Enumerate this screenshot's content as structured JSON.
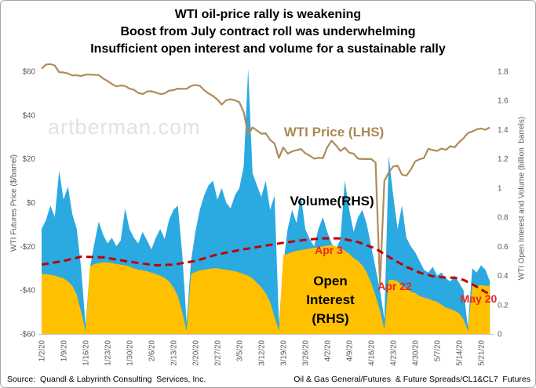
{
  "title": {
    "lines": [
      "WTI oil-price rally is weakening",
      "Boost from July contract roll was underwhelming",
      "Insufficient open interest and volume for a sustainable rally"
    ]
  },
  "watermark": "artberman.com",
  "annotations": {
    "price_label": "WTI Price (LHS)",
    "volume_label": "Volume(RHS)",
    "open_interest_lines": [
      "Open",
      "Interest",
      "(RHS)"
    ],
    "apr3": "Apr 3",
    "apr22": "Apr 22",
    "may20": "May 20"
  },
  "footer": {
    "source": "Source:  Quandl & Labyrinth Consulting  Services, Inc.",
    "dataset": "Oil & Gas General/Futures  & Future Spreads/CL1&CL7  Futures"
  },
  "colors": {
    "volume_area": "#2BA9E1",
    "open_interest_area": "#FFC000",
    "price_line": "#AE8C5A",
    "trend_dashed": "#C00000",
    "annotation_red": "#E8251C",
    "axis_text": "#595959",
    "watermark": "#E2E2E2"
  },
  "chart_data": {
    "type": "area",
    "subtype": "combo-chart: two overlapping area series (right axis) + price line (left axis) + dashed trend line (right axis)",
    "n_points": 103,
    "x_label_every_n_points": 5,
    "x_labels": [
      "1/2/20",
      "1/9/20",
      "1/16/20",
      "1/23/20",
      "1/30/20",
      "2/6/20",
      "2/13/20",
      "2/20/20",
      "2/27/20",
      "3/5/20",
      "3/12/20",
      "3/19/20",
      "3/26/20",
      "4/2/20",
      "4/9/20",
      "4/16/20",
      "4/23/20",
      "4/30/20",
      "5/7/20",
      "5/14/20",
      "5/21/20"
    ],
    "left_axis": {
      "title": "WTI Futures Price ($/barrel)",
      "min": -60,
      "max": 60,
      "ticks": [
        "$60",
        "$40",
        "$20",
        "$0",
        "-$20",
        "-$40",
        "-$60"
      ]
    },
    "right_axis": {
      "title": "WTI Open Interest and Volume (billion  barrels)",
      "min": 0,
      "max": 1.8,
      "ticks": [
        "1.8",
        "1.6",
        "1.4",
        "1.2",
        "1",
        "0.8",
        "0.6",
        "0.4",
        "0.2",
        "0"
      ]
    },
    "grid": false,
    "legend": "inline text labels on plot",
    "series": [
      {
        "name": "WTI Price (LHS)",
        "type": "line",
        "axis": "left",
        "color": "#AE8C5A",
        "values": [
          61.2,
          63.1,
          63.3,
          62.7,
          59.6,
          59.5,
          59.0,
          58.1,
          58.2,
          57.8,
          58.5,
          58.5,
          58.4,
          58.3,
          56.7,
          55.6,
          54.2,
          53.1,
          53.5,
          53.3,
          52.1,
          51.6,
          50.1,
          49.6,
          50.8,
          50.9,
          50.3,
          49.6,
          49.9,
          51.2,
          51.4,
          52.1,
          52.0,
          52.0,
          53.3,
          53.8,
          53.4,
          51.4,
          49.9,
          48.7,
          47.1,
          44.8,
          46.8,
          47.2,
          46.8,
          45.9,
          41.3,
          31.1,
          34.4,
          33.0,
          31.5,
          31.7,
          28.7,
          27.0,
          20.4,
          25.2,
          22.4,
          23.4,
          24.0,
          24.5,
          22.6,
          21.5,
          20.1,
          20.5,
          20.3,
          25.3,
          28.3,
          26.1,
          23.6,
          25.1,
          22.8,
          22.4,
          20.1,
          19.9,
          19.9,
          19.9,
          18.3,
          -37.6,
          10.0,
          13.8,
          16.5,
          16.9,
          12.8,
          12.3,
          15.1,
          18.8,
          19.8,
          20.4,
          24.6,
          24.0,
          23.6,
          24.7,
          24.1,
          25.8,
          25.3,
          27.6,
          29.4,
          31.8,
          32.5,
          33.5,
          33.9,
          33.3,
          34.4
        ]
      },
      {
        "name": "Volume(RHS)",
        "type": "area",
        "axis": "right",
        "color": "#2BA9E1",
        "values": [
          0.72,
          0.78,
          0.88,
          0.8,
          1.12,
          0.92,
          1.01,
          0.82,
          0.72,
          0.45,
          0.06,
          0.45,
          0.62,
          0.77,
          0.68,
          0.62,
          0.66,
          0.6,
          0.64,
          0.86,
          0.72,
          0.66,
          0.62,
          0.7,
          0.64,
          0.58,
          0.66,
          0.72,
          0.65,
          0.78,
          0.85,
          0.88,
          0.55,
          0.08,
          0.5,
          0.7,
          0.85,
          0.95,
          1.02,
          1.05,
          0.92,
          1.0,
          0.9,
          0.86,
          0.95,
          1.0,
          1.15,
          1.82,
          1.1,
          1.02,
          0.94,
          1.05,
          0.85,
          0.95,
          0.07,
          0.48,
          0.72,
          0.85,
          0.76,
          0.95,
          0.72,
          0.65,
          0.6,
          0.72,
          0.8,
          0.7,
          0.62,
          0.58,
          0.65,
          1.05,
          0.85,
          0.7,
          0.8,
          0.85,
          0.75,
          0.6,
          0.45,
          0.3,
          0.1,
          1.22,
          0.95,
          0.72,
          0.88,
          0.66,
          0.6,
          0.56,
          0.5,
          0.44,
          0.42,
          0.46,
          0.4,
          0.42,
          0.38,
          0.36,
          0.4,
          0.35,
          0.3,
          0.05,
          0.45,
          0.42,
          0.47,
          0.44,
          0.36
        ]
      },
      {
        "name": "Open Interest (RHS)",
        "type": "area",
        "axis": "right",
        "color": "#FFC000",
        "values": [
          0.41,
          0.41,
          0.405,
          0.4,
          0.39,
          0.38,
          0.36,
          0.33,
          0.27,
          0.15,
          0.02,
          0.46,
          0.48,
          0.485,
          0.49,
          0.49,
          0.485,
          0.48,
          0.475,
          0.47,
          0.46,
          0.45,
          0.44,
          0.435,
          0.43,
          0.42,
          0.41,
          0.4,
          0.385,
          0.36,
          0.32,
          0.26,
          0.15,
          0.02,
          0.41,
          0.425,
          0.435,
          0.44,
          0.445,
          0.45,
          0.45,
          0.445,
          0.44,
          0.435,
          0.43,
          0.42,
          0.41,
          0.4,
          0.38,
          0.35,
          0.32,
          0.28,
          0.22,
          0.12,
          0.02,
          0.54,
          0.55,
          0.56,
          0.57,
          0.575,
          0.58,
          0.585,
          0.59,
          0.595,
          0.6,
          0.605,
          0.61,
          0.6,
          0.585,
          0.57,
          0.55,
          0.52,
          0.5,
          0.47,
          0.42,
          0.35,
          0.26,
          0.16,
          0.03,
          0.37,
          0.37,
          0.36,
          0.33,
          0.31,
          0.29,
          0.28,
          0.26,
          0.25,
          0.24,
          0.23,
          0.22,
          0.2,
          0.18,
          0.17,
          0.16,
          0.14,
          0.1,
          0.02,
          0.33,
          0.33,
          0.335,
          0.33,
          0.33
        ]
      },
      {
        "name": "Open interest trend",
        "type": "line",
        "style": "dashed",
        "axis": "right",
        "color": "#C00000",
        "anchors": [
          [
            0,
            0.475
          ],
          [
            5,
            0.5
          ],
          [
            9,
            0.53
          ],
          [
            14,
            0.525
          ],
          [
            20,
            0.495
          ],
          [
            26,
            0.47
          ],
          [
            30,
            0.475
          ],
          [
            35,
            0.5
          ],
          [
            40,
            0.545
          ],
          [
            45,
            0.575
          ],
          [
            50,
            0.6
          ],
          [
            55,
            0.625
          ],
          [
            60,
            0.645
          ],
          [
            64,
            0.655
          ],
          [
            68,
            0.655
          ],
          [
            72,
            0.63
          ],
          [
            76,
            0.585
          ],
          [
            80,
            0.51
          ],
          [
            83,
            0.46
          ],
          [
            86,
            0.42
          ],
          [
            89,
            0.395
          ],
          [
            92,
            0.385
          ],
          [
            94,
            0.385
          ],
          [
            96,
            0.37
          ],
          [
            98,
            0.34
          ],
          [
            100,
            0.305
          ],
          [
            102,
            0.27
          ]
        ]
      }
    ]
  }
}
